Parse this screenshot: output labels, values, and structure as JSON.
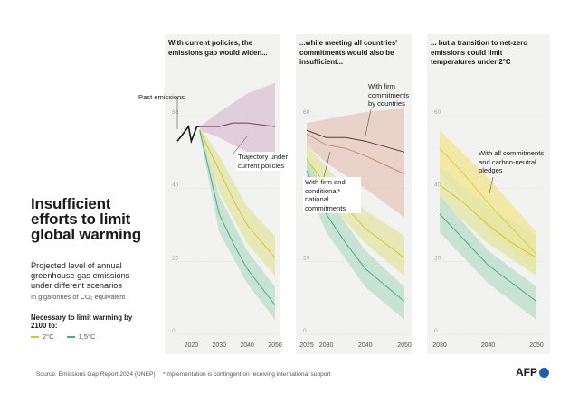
{
  "title": "Insufficient efforts to limit global warming",
  "subtitle": "Projected level of annual greenhouse gas emissions under different scenarios",
  "unit": "In gigatonnes of CO₂ equivalent",
  "legend": {
    "title": "Necessary to limit warming by 2100 to:",
    "items": [
      {
        "label": "2°C",
        "color": "#d6c62a"
      },
      {
        "label": "1,5°C",
        "color": "#4dab8c"
      }
    ]
  },
  "colors": {
    "panel_bg": "#f2f2f0",
    "current_policies": "#6e3f66",
    "current_policies_band": "#d9c3d3",
    "unconditional": "#5a3b3b",
    "conditional": "#c98a73",
    "ndc_band": "#e4c7bd",
    "net_zero_band": "#f1e58f",
    "c2_band": "#e2e6a4",
    "c15_band": "#b9ddc9",
    "historical": "#1a1a1a"
  },
  "source": "Source: Emissions Gap Report 2024 (UNEP)",
  "footnote": "*Implementation is contingent on receiving international support",
  "logo": "AFP",
  "chart_data": [
    {
      "type": "line",
      "title": "With current policies, the emissions gap would widen...",
      "ylim": [
        0,
        60
      ],
      "yticks": [
        0,
        20,
        40,
        60
      ],
      "xlim": [
        2015,
        2050
      ],
      "xticks": [
        2020,
        2030,
        2040,
        2050
      ],
      "annotations": [
        "Past emissions",
        "Trajectory under current policies"
      ],
      "series": [
        {
          "name": "Past emissions",
          "x": [
            2015,
            2016,
            2017,
            2018,
            2019,
            2020,
            2021,
            2022,
            2023
          ],
          "y": [
            53,
            54,
            55,
            56,
            57,
            53,
            55,
            57,
            57
          ]
        },
        {
          "name": "Current policies",
          "x": [
            2023,
            2030,
            2035,
            2040,
            2050
          ],
          "y": [
            57,
            57,
            58,
            58,
            57
          ]
        },
        {
          "name": "2°C",
          "x": [
            2023,
            2030,
            2035,
            2040,
            2050
          ],
          "y": [
            56,
            45,
            37,
            30,
            21
          ]
        },
        {
          "name": "1,5°C",
          "x": [
            2023,
            2030,
            2035,
            2040,
            2050
          ],
          "y": [
            56,
            33,
            25,
            18,
            8
          ]
        }
      ],
      "bands": [
        {
          "name": "Current policies",
          "x": [
            2023,
            2030,
            2040,
            2050
          ],
          "low": [
            56,
            54,
            50,
            45
          ],
          "high": [
            57,
            61,
            66,
            69
          ]
        },
        {
          "name": "2°C",
          "x": [
            2023,
            2030,
            2040,
            2050
          ],
          "low": [
            55,
            39,
            25,
            16
          ],
          "high": [
            57,
            49,
            35,
            27
          ]
        },
        {
          "name": "1,5°C",
          "x": [
            2023,
            2030,
            2040,
            2050
          ],
          "low": [
            55,
            28,
            14,
            4
          ],
          "high": [
            57,
            38,
            23,
            13
          ]
        }
      ]
    },
    {
      "type": "line",
      "title": "...while meeting all countries' commitments would also be insufficient...",
      "ylim": [
        0,
        60
      ],
      "yticks": [
        0,
        20,
        40,
        60
      ],
      "xlim": [
        2025,
        2050
      ],
      "xticks": [
        2025,
        2030,
        2040,
        2050
      ],
      "annotations": [
        "With firm commitments by countries",
        "With firm and conditional* national commitments"
      ],
      "series": [
        {
          "name": "Firm commitments",
          "x": [
            2025,
            2030,
            2035,
            2040,
            2050
          ],
          "y": [
            56,
            54,
            54,
            53,
            50
          ]
        },
        {
          "name": "Firm and conditional commitments",
          "x": [
            2025,
            2030,
            2035,
            2040,
            2050
          ],
          "y": [
            55,
            52,
            51,
            49,
            44
          ]
        },
        {
          "name": "2°C",
          "x": [
            2025,
            2030,
            2035,
            2040,
            2050
          ],
          "y": [
            48,
            41,
            35,
            29,
            21
          ]
        },
        {
          "name": "1,5°C",
          "x": [
            2025,
            2030,
            2035,
            2040,
            2050
          ],
          "y": [
            45,
            33,
            25,
            18,
            9
          ]
        }
      ],
      "bands": [
        {
          "name": "Commitments",
          "x": [
            2025,
            2030,
            2040,
            2050
          ],
          "low": [
            52,
            47,
            40,
            32
          ],
          "high": [
            58,
            59,
            61,
            62
          ]
        },
        {
          "name": "2°C",
          "x": [
            2025,
            2030,
            2040,
            2050
          ],
          "low": [
            44,
            37,
            25,
            16
          ],
          "high": [
            52,
            46,
            34,
            27
          ]
        },
        {
          "name": "1,5°C",
          "x": [
            2025,
            2030,
            2040,
            2050
          ],
          "low": [
            41,
            28,
            13,
            4
          ],
          "high": [
            49,
            38,
            23,
            13
          ]
        }
      ]
    },
    {
      "type": "line",
      "title": "... but a transition to net-zero emissions could limit temperatures under 2°C",
      "ylim": [
        0,
        60
      ],
      "yticks": [
        0,
        20,
        40,
        60
      ],
      "xlim": [
        2030,
        2050
      ],
      "xticks": [
        2030,
        2040,
        2050
      ],
      "annotations": [
        "With all commitments and carbon-neutral pledges"
      ],
      "series": [
        {
          "name": "Net-zero pledges",
          "x": [
            2030,
            2035,
            2040,
            2045,
            2050
          ],
          "y": [
            51,
            44,
            36,
            29,
            22
          ]
        },
        {
          "name": "2°C",
          "x": [
            2030,
            2035,
            2040,
            2045,
            2050
          ],
          "y": [
            41,
            36,
            30,
            25,
            21
          ]
        },
        {
          "name": "1,5°C",
          "x": [
            2030,
            2035,
            2040,
            2045,
            2050
          ],
          "y": [
            33,
            26,
            19,
            14,
            9
          ]
        }
      ],
      "bands": [
        {
          "name": "Net-zero pledges",
          "x": [
            2030,
            2040,
            2050
          ],
          "low": [
            45,
            29,
            17
          ],
          "high": [
            56,
            43,
            28
          ]
        },
        {
          "name": "2°C",
          "x": [
            2030,
            2040,
            2050
          ],
          "low": [
            37,
            25,
            16
          ],
          "high": [
            46,
            35,
            27
          ]
        },
        {
          "name": "1,5°C",
          "x": [
            2030,
            2040,
            2050
          ],
          "low": [
            28,
            14,
            4
          ],
          "high": [
            38,
            23,
            13
          ]
        }
      ]
    }
  ]
}
